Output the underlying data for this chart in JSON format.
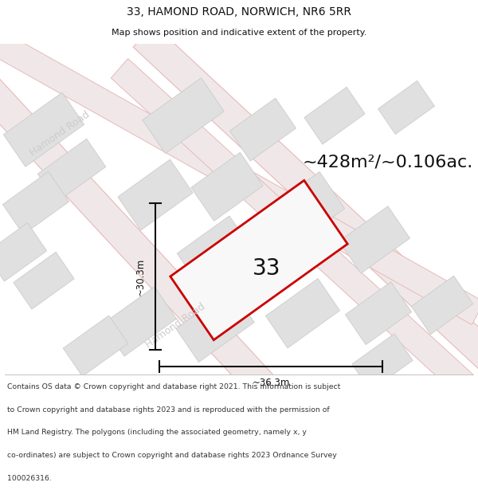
{
  "title": "33, HAMOND ROAD, NORWICH, NR6 5RR",
  "subtitle": "Map shows position and indicative extent of the property.",
  "area_text": "~428m²/~0.106ac.",
  "label_33": "33",
  "dim_width": "~36.3m",
  "dim_height": "~30.3m",
  "road_label": "Hamond Road",
  "map_bg": "#f5f4f2",
  "footer_lines": [
    "Contains OS data © Crown copyright and database right 2021. This information is subject",
    "to Crown copyright and database rights 2023 and is reproduced with the permission of",
    "HM Land Registry. The polygons (including the associated geometry, namely x, y",
    "co-ordinates) are subject to Crown copyright and database rights 2023 Ordnance Survey",
    "100026316."
  ],
  "road_color": "#e8b8b8",
  "road_fill": "#f0e8e8",
  "building_fill": "#e0e0e0",
  "building_edge": "#cccccc",
  "highlight_fill": "#f8f8f8",
  "highlight_edge": "#cc0000",
  "dim_line_color": "#111111",
  "text_color": "#111111",
  "road_text_color": "#cccccc",
  "area_text_color": "#111111"
}
